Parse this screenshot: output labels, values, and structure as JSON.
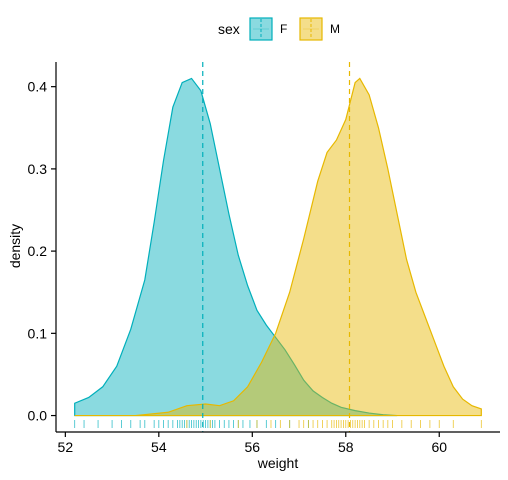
{
  "chart_data": {
    "type": "density",
    "xlabel": "weight",
    "ylabel": "density",
    "xlim": [
      51.8,
      61.3
    ],
    "ylim": [
      -0.02,
      0.43
    ],
    "x_ticks": [
      52,
      54,
      56,
      58,
      60
    ],
    "y_ticks": [
      0.0,
      0.1,
      0.2,
      0.3,
      0.4
    ],
    "y_tick_labels": [
      "0.0",
      "0.1",
      "0.2",
      "0.3",
      "0.4"
    ],
    "grid": false,
    "legend": {
      "title": "sex",
      "position": "top",
      "entries": [
        "F",
        "M"
      ]
    },
    "series": [
      {
        "name": "F",
        "color": "#00AFBB",
        "fill": "#00AFBB",
        "fill_opacity": 0.46,
        "mean": 54.94,
        "x": [
          52.2,
          52.5,
          52.8,
          53.1,
          53.4,
          53.7,
          53.9,
          54.1,
          54.3,
          54.5,
          54.7,
          54.9,
          55.1,
          55.3,
          55.5,
          55.7,
          55.9,
          56.1,
          56.3,
          56.5,
          56.7,
          56.9,
          57.1,
          57.3,
          57.5,
          57.7,
          57.9,
          58.2,
          58.5,
          58.8,
          59.1
        ],
        "y": [
          0.015,
          0.022,
          0.035,
          0.06,
          0.105,
          0.165,
          0.235,
          0.31,
          0.375,
          0.405,
          0.41,
          0.395,
          0.355,
          0.3,
          0.245,
          0.195,
          0.158,
          0.128,
          0.11,
          0.095,
          0.08,
          0.062,
          0.043,
          0.03,
          0.022,
          0.015,
          0.01,
          0.006,
          0.003,
          0.001,
          0.0
        ]
      },
      {
        "name": "M",
        "color": "#E7B800",
        "fill": "#E7B800",
        "fill_opacity": 0.46,
        "mean": 58.08,
        "x": [
          52.2,
          53.5,
          54.2,
          54.6,
          55.0,
          55.3,
          55.6,
          55.9,
          56.2,
          56.5,
          56.8,
          57.1,
          57.4,
          57.6,
          57.8,
          58.0,
          58.2,
          58.3,
          58.5,
          58.7,
          58.9,
          59.1,
          59.3,
          59.5,
          59.7,
          59.9,
          60.1,
          60.3,
          60.5,
          60.7,
          60.9
        ],
        "y": [
          0.0,
          0.0,
          0.004,
          0.012,
          0.014,
          0.012,
          0.018,
          0.035,
          0.065,
          0.1,
          0.15,
          0.215,
          0.285,
          0.32,
          0.335,
          0.36,
          0.405,
          0.41,
          0.39,
          0.35,
          0.3,
          0.245,
          0.19,
          0.15,
          0.12,
          0.09,
          0.06,
          0.035,
          0.02,
          0.012,
          0.008
        ]
      }
    ],
    "rug": {
      "F": [
        52.2,
        52.4,
        52.7,
        53.0,
        53.2,
        53.4,
        53.6,
        53.7,
        53.9,
        54.0,
        54.1,
        54.2,
        54.3,
        54.4,
        54.45,
        54.5,
        54.55,
        54.6,
        54.65,
        54.7,
        54.75,
        54.8,
        54.85,
        54.9,
        54.95,
        55.0,
        55.05,
        55.1,
        55.15,
        55.2,
        55.3,
        55.4,
        55.5,
        55.6,
        55.7,
        55.8,
        55.95,
        56.1,
        56.3,
        56.5,
        56.8,
        57.2
      ],
      "M": [
        54.6,
        55.1,
        55.7,
        56.1,
        56.4,
        56.6,
        56.8,
        57.0,
        57.1,
        57.2,
        57.3,
        57.4,
        57.5,
        57.6,
        57.7,
        57.75,
        57.8,
        57.85,
        57.9,
        57.95,
        58.0,
        58.05,
        58.1,
        58.15,
        58.2,
        58.25,
        58.3,
        58.35,
        58.4,
        58.5,
        58.6,
        58.7,
        58.8,
        58.9,
        59.0,
        59.2,
        59.4,
        59.6,
        59.8,
        60.0,
        60.3,
        60.9
      ]
    }
  }
}
